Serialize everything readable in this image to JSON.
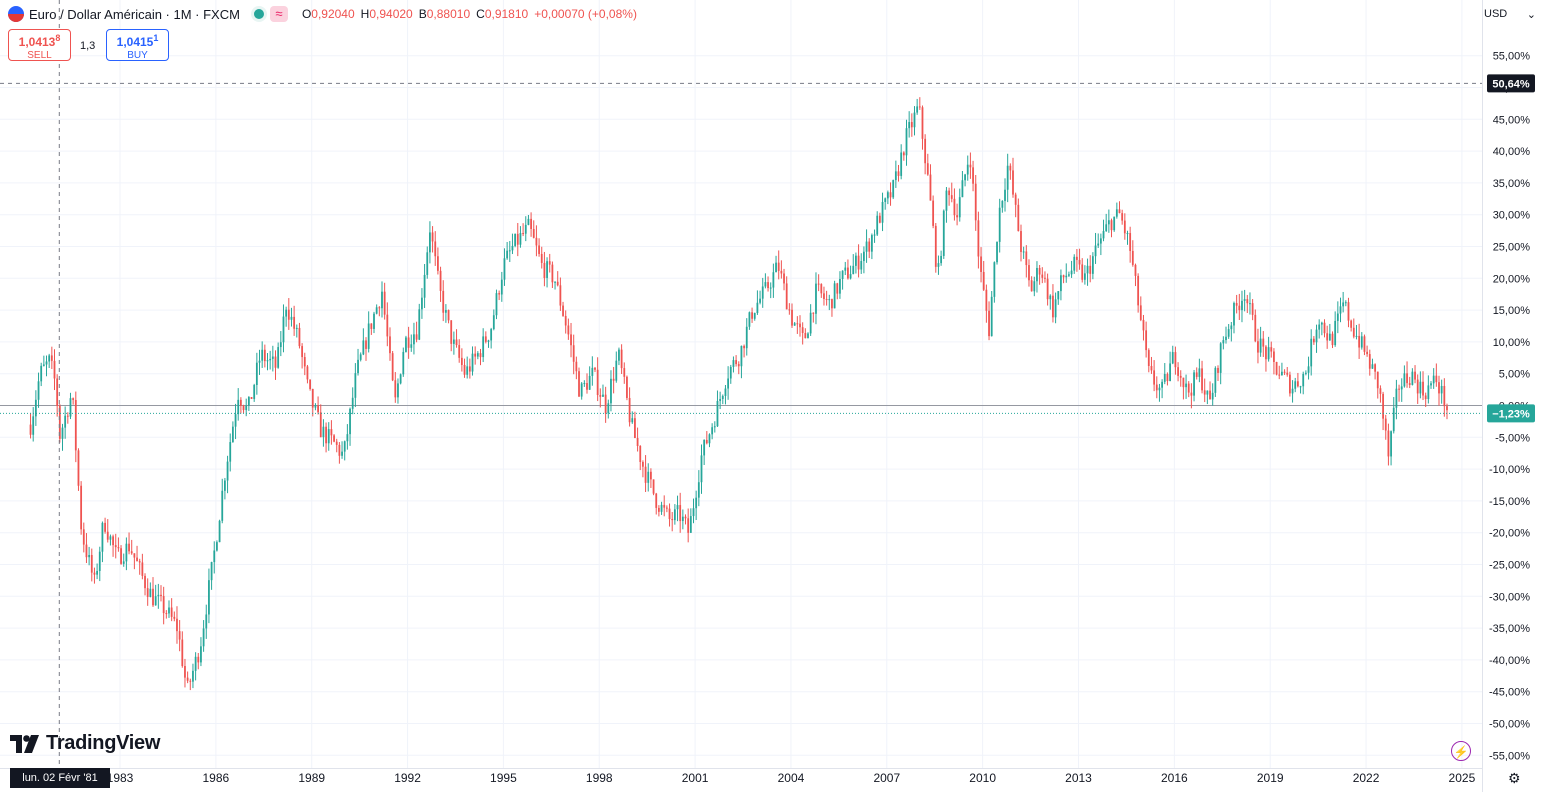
{
  "header": {
    "title": "Euro / Dollar Américain · 1M · FXCM",
    "wave_glyph": "≈",
    "o_label": "O",
    "o_value": "0,92040",
    "h_label": "H",
    "h_value": "0,94020",
    "b_label": "B",
    "b_value": "0,88010",
    "c_label": "C",
    "c_value": "0,91810",
    "change": "+0,00070 (+0,08%)"
  },
  "trade": {
    "sell_price": "1,0413",
    "sell_sup": "8",
    "sell_label": "SELL",
    "spread": "1,3",
    "buy_price": "1,0415",
    "buy_sup": "1",
    "buy_label": "BUY"
  },
  "currency": {
    "label": "USD",
    "chevron": "⌄"
  },
  "logo": {
    "text": "TradingView"
  },
  "crosshair_date": "lun. 02 Févr '81",
  "icons": {
    "bolt": "⚡",
    "gear": "⚙"
  },
  "colors": {
    "up": "#26a69a",
    "down": "#ef5350",
    "grid": "#f0f3fa",
    "text": "#131722",
    "badge": "#131722"
  },
  "chart_data": {
    "type": "candlestick",
    "title": "Euro / Dollar Américain · 1M · FXCM",
    "xlabel": "",
    "ylabel": "",
    "y_unit": "% change (percentage scale)",
    "ylim": [
      -57,
      58
    ],
    "xlim": [
      1980.2,
      2025.6
    ],
    "y_ticks": [
      "55,00%",
      "50,00%",
      "45,00%",
      "40,00%",
      "35,00%",
      "30,00%",
      "25,00%",
      "20,00%",
      "15,00%",
      "10,00%",
      "5,00%",
      "0,00%",
      "-5,00%",
      "-10,00%",
      "-15,00%",
      "-20,00%",
      "-25,00%",
      "-30,00%",
      "-35,00%",
      "-40,00%",
      "-45,00%",
      "-50,00%",
      "-55,00%"
    ],
    "x_ticks": [
      "1983",
      "1986",
      "1989",
      "1992",
      "1995",
      "1998",
      "2001",
      "2004",
      "2007",
      "2010",
      "2013",
      "2016",
      "2019",
      "2022",
      "2025"
    ],
    "reference_line_value": 0,
    "crosshair": {
      "x": 1981.1,
      "y": 50.64,
      "y_label": "50,64%"
    },
    "last": {
      "value": -1.23,
      "label": "−1,23%"
    },
    "grid": true,
    "path_year": [
      1980.2,
      1980.5,
      1980.8,
      1981.0,
      1981.1,
      1981.5,
      1981.8,
      1982.2,
      1982.5,
      1982.9,
      1983.3,
      1983.7,
      1984.0,
      1984.4,
      1984.8,
      1985.1,
      1985.5,
      1985.9,
      1986.3,
      1986.7,
      1987.0,
      1987.4,
      1987.9,
      1988.2,
      1988.6,
      1988.9,
      1989.3,
      1989.7,
      1990.0,
      1990.4,
      1990.8,
      1991.2,
      1991.6,
      1991.9,
      1992.3,
      1992.7,
      1993.0,
      1993.4,
      1993.8,
      1994.2,
      1994.6,
      1995.0,
      1995.3,
      1995.8,
      1996.2,
      1996.6,
      1997.0,
      1997.4,
      1997.8,
      1998.2,
      1998.6,
      1999.0,
      1999.4,
      1999.8,
      2000.2,
      2000.5,
      2000.8,
      2001.2,
      2001.6,
      2002.0,
      2002.4,
      2002.8,
      2003.2,
      2003.6,
      2004.0,
      2004.4,
      2004.8,
      2005.2,
      2005.6,
      2006.0,
      2006.4,
      2006.8,
      2007.2,
      2007.6,
      2008.0,
      2008.3,
      2008.6,
      2008.9,
      2009.2,
      2009.6,
      2009.9,
      2010.2,
      2010.5,
      2010.8,
      2011.2,
      2011.5,
      2011.8,
      2012.2,
      2012.5,
      2012.9,
      2013.2,
      2013.6,
      2014.0,
      2014.3,
      2014.6,
      2014.9,
      2015.2,
      2015.6,
      2016.0,
      2016.4,
      2016.8,
      2017.1,
      2017.5,
      2017.9,
      2018.2,
      2018.6,
      2018.9,
      2019.3,
      2019.7,
      2020.1,
      2020.5,
      2020.9,
      2021.3,
      2021.6,
      2022.0,
      2022.4,
      2022.7,
      2023.0,
      2023.4,
      2023.8,
      2024.2,
      2024.6,
      2024.9,
      2025.1
    ],
    "path_value": [
      -3,
      5,
      7,
      3,
      -5,
      2,
      -20,
      -28,
      -18,
      -24,
      -22,
      -27,
      -30,
      -32,
      -35,
      -45,
      -38,
      -25,
      -10,
      2,
      -1,
      8,
      6,
      16,
      10,
      2,
      -4,
      -6,
      -8,
      5,
      12,
      18,
      0,
      10,
      12,
      28,
      18,
      10,
      5,
      8,
      12,
      22,
      25,
      28,
      22,
      20,
      12,
      2,
      5,
      0,
      8,
      -3,
      -10,
      -15,
      -18,
      -17,
      -20,
      -8,
      -2,
      5,
      8,
      15,
      18,
      22,
      14,
      10,
      18,
      16,
      20,
      22,
      25,
      30,
      34,
      42,
      47,
      35,
      20,
      35,
      30,
      40,
      22,
      12,
      30,
      38,
      25,
      18,
      22,
      15,
      20,
      22,
      20,
      25,
      29,
      30,
      25,
      15,
      5,
      2,
      8,
      2,
      5,
      0,
      10,
      15,
      18,
      10,
      8,
      5,
      3,
      5,
      14,
      10,
      16,
      12,
      8,
      3,
      -8,
      3,
      5,
      2,
      4,
      -1.23
    ]
  }
}
